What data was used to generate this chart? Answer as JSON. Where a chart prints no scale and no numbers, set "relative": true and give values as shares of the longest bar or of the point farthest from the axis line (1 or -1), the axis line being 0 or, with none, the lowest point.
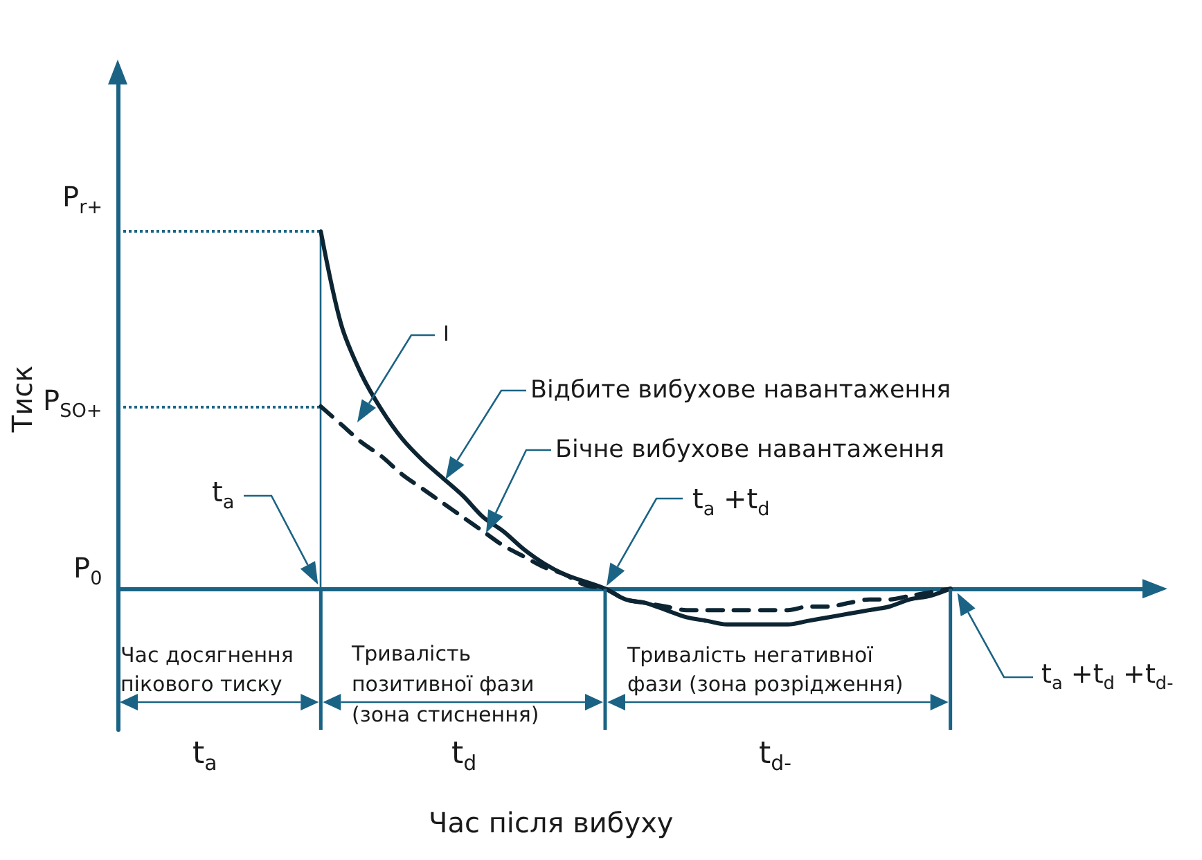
{
  "chart_data": {
    "type": "line",
    "relative": true,
    "ylabel": "Тиск",
    "categories": [
      null,
      null,
      null,
      null,
      null,
      null,
      null,
      null,
      null,
      null,
      null,
      null,
      null,
      null,
      null,
      null,
      null,
      null,
      null,
      null,
      null,
      null,
      null,
      null,
      null,
      null,
      null,
      null,
      null,
      null,
      null,
      null,
      null,
      null,
      null,
      null,
      null,
      null,
      null,
      null,
      null,
      null,
      null,
      null,
      null,
      null,
      null,
      null,
      null,
      null,
      null,
      null
    ],
    "series": [
      {
        "color": "#0d2533",
        "line_style": "solid",
        "values": [
          null,
          null,
          null,
          null,
          null,
          null,
          null,
          null,
          null,
          null,
          1,
          0.74,
          0.6,
          0.5,
          0.42,
          0.36,
          0.31,
          0.26,
          0.2,
          0.16,
          0.11,
          0.07,
          0.04,
          0.02,
          0,
          -0.03,
          -0.04,
          -0.06,
          -0.08,
          -0.09,
          -0.1,
          -0.1,
          -0.1,
          -0.1,
          -0.09,
          -0.08,
          -0.07,
          -0.06,
          -0.05,
          -0.03,
          -0.02,
          0,
          null,
          null,
          null,
          null,
          null,
          null,
          null,
          null,
          null,
          null
        ]
      },
      {
        "color": "#0d2533",
        "line_style": "dashed",
        "values": [
          null,
          null,
          null,
          null,
          null,
          null,
          null,
          null,
          null,
          null,
          0.51,
          0.46,
          0.41,
          0.37,
          0.32,
          0.28,
          0.24,
          0.2,
          0.16,
          0.12,
          0.09,
          0.06,
          0.04,
          0.01,
          0,
          -0.03,
          -0.04,
          -0.05,
          -0.06,
          -0.06,
          -0.06,
          -0.06,
          -0.06,
          -0.06,
          -0.05,
          -0.05,
          -0.04,
          -0.03,
          -0.03,
          -0.02,
          -0.01,
          0,
          null,
          null,
          null,
          null,
          null,
          null,
          null,
          null,
          null,
          null
        ]
      }
    ],
    "ref_lines": [
      {
        "axis": "y",
        "value": 1,
        "label": "P$_{r+}$",
        "color": "#1b6384",
        "line_style": "dotted"
      },
      {
        "axis": "y",
        "value": 0.51,
        "label": "P$_{SO+}$",
        "color": "#1b6384",
        "line_style": "dotted"
      },
      {
        "axis": "y",
        "value": 0,
        "label": "P$_{0}$",
        "color": "#1b6384",
        "line_style": "solid"
      }
    ],
    "annotations": [
      "t$_{a}$",
      "I",
      "t$_{a}$ +t$_{d}$",
      "t$_{a}$ +t$_{d}$ +t$_{d-}$",
      "Час досягнення пікового тиску",
      "Тривалість позитивної фази (зона стиснення)",
      "Тривалість негативної фази (зона розрідження)",
      "t$_{a}$",
      "t$_{d}$",
      "t$_{d-}$",
      "Відбите вибухове навантаження",
      "Бічне вибухове навантаження",
      "Час після вибуху"
    ]
  }
}
